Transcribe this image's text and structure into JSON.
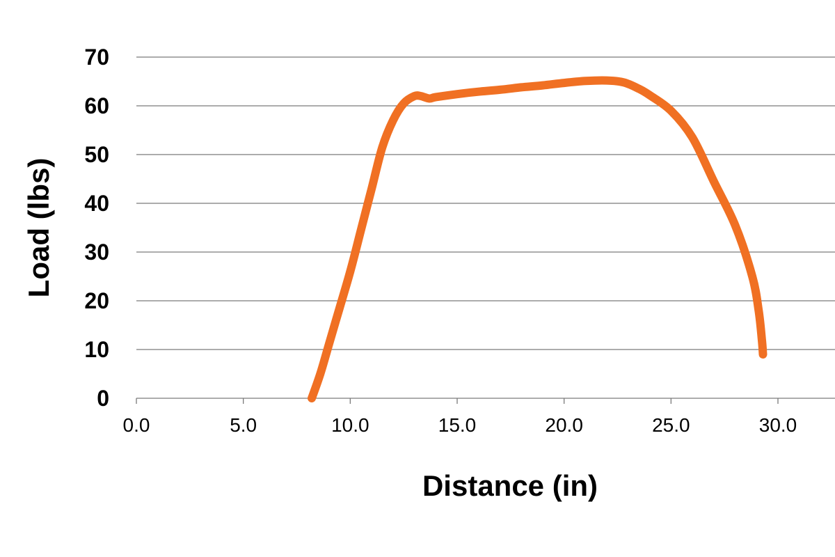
{
  "chart_data": {
    "type": "line",
    "title": "",
    "xlabel": "Distance (in)",
    "ylabel": "Load (lbs)",
    "xlim": [
      0,
      30
    ],
    "ylim": [
      0,
      70
    ],
    "grid": "horizontal",
    "x_ticks": [
      "0.0",
      "5.0",
      "10.0",
      "15.0",
      "20.0",
      "25.0",
      "30.0"
    ],
    "y_ticks": [
      "0",
      "10",
      "20",
      "30",
      "40",
      "50",
      "60",
      "70"
    ],
    "series": [
      {
        "color": "#f07023",
        "x": [
          8.2,
          8.6,
          9.0,
          9.5,
          10.0,
          10.5,
          11.0,
          11.5,
          12.0,
          12.5,
          13.0,
          13.3,
          13.7,
          14.0,
          15.0,
          16.0,
          17.0,
          18.0,
          19.0,
          20.0,
          21.0,
          22.0,
          22.8,
          23.5,
          24.0,
          25.0,
          26.0,
          27.0,
          28.0,
          28.8,
          29.1,
          29.25,
          29.3
        ],
        "y": [
          0.0,
          5.0,
          11.0,
          18.5,
          26.0,
          34.5,
          43.0,
          51.5,
          57.0,
          60.5,
          62.0,
          62.0,
          61.5,
          61.8,
          62.4,
          62.9,
          63.3,
          63.8,
          64.2,
          64.7,
          65.1,
          65.2,
          64.8,
          63.5,
          62.2,
          59.0,
          53.5,
          44.5,
          35.5,
          25.0,
          18.0,
          12.0,
          9.0
        ]
      }
    ]
  }
}
